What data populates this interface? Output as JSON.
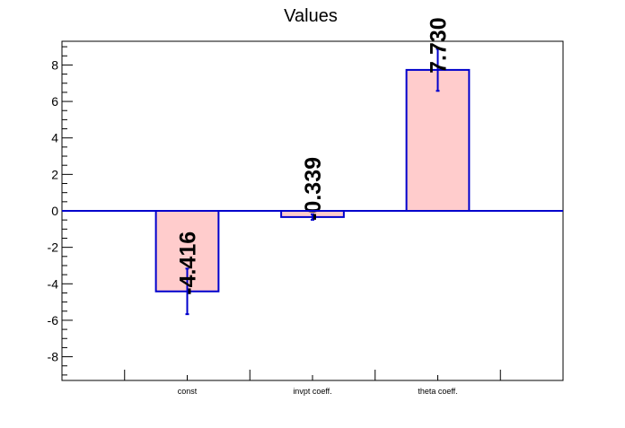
{
  "chart_data": {
    "type": "bar",
    "title": "Values",
    "xlabel": "",
    "ylabel": "",
    "categories": [
      "const",
      "invpt coeff.",
      "theta coeff."
    ],
    "values": [
      -4.416,
      -0.339,
      7.73
    ],
    "errors": [
      1.25,
      0.15,
      1.15
    ],
    "labels": [
      "-4.416",
      "-0.339",
      "7.730"
    ],
    "ylim": [
      -9.3,
      9.3
    ],
    "yticks": [
      -8,
      -6,
      -4,
      -2,
      0,
      2,
      4,
      6,
      8
    ],
    "grid": false,
    "legend": "none",
    "colors": {
      "bar_fill": "#ffcccc",
      "bar_edge": "#0000cc",
      "zero_line": "#0000cc",
      "axis": "#000000"
    }
  }
}
